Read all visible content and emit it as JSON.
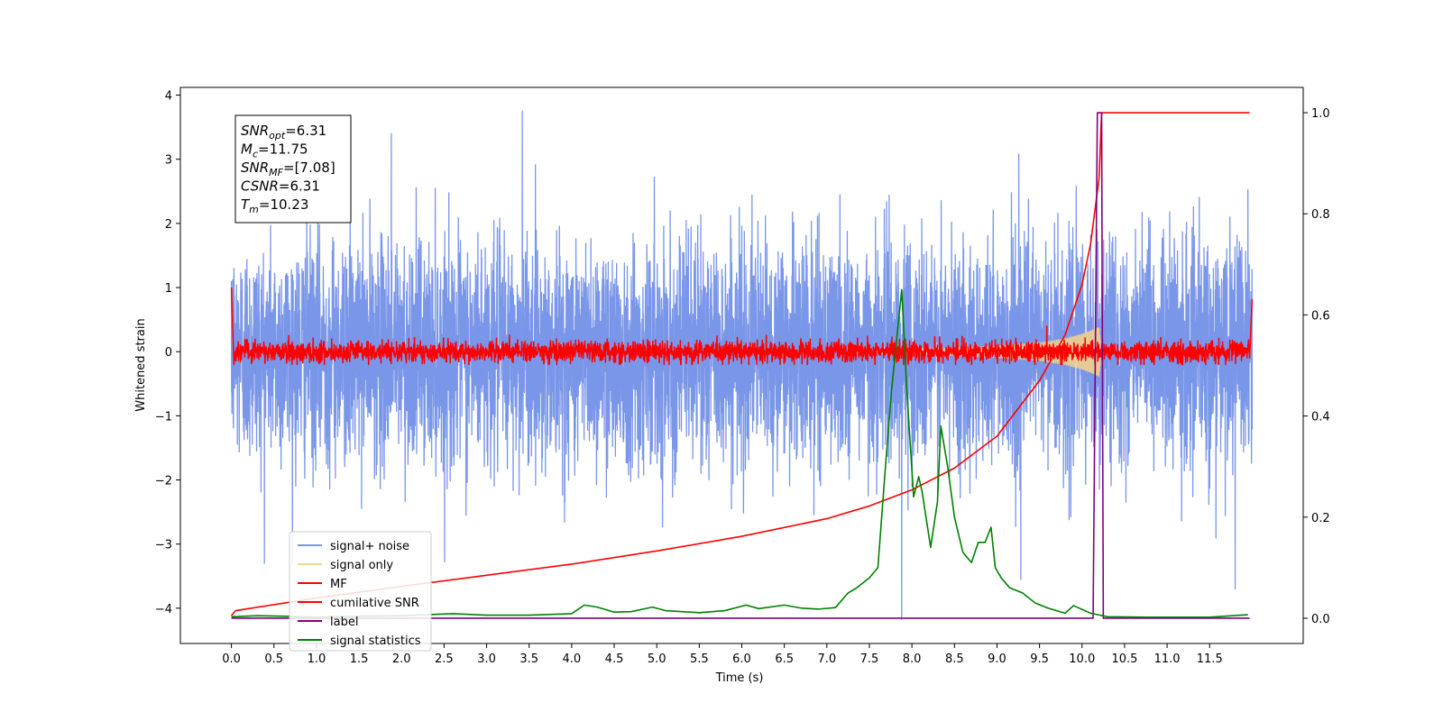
{
  "chart_data": {
    "type": "line",
    "xlabel": "Time (s)",
    "ylabel": "Whitened strain",
    "x_ticks": [
      "0.0",
      "0.5",
      "1.0",
      "1.5",
      "2.0",
      "2.5",
      "3.0",
      "3.5",
      "4.0",
      "4.5",
      "5.0",
      "5.5",
      "6.0",
      "6.5",
      "7.0",
      "7.5",
      "8.0",
      "8.5",
      "9.0",
      "9.5",
      "10.0",
      "10.5",
      "11.0",
      "11.5"
    ],
    "y_ticks": [
      "4",
      "3",
      "2",
      "1",
      "0",
      "−1",
      "−2",
      "−3",
      "−4"
    ],
    "y2_ticks": [
      "1.0",
      "0.8",
      "0.6",
      "0.4",
      "0.2",
      "0.0"
    ],
    "xlim": [
      -0.6,
      12.6
    ],
    "ylim": [
      -4.55,
      4.12
    ],
    "y2lim": [
      -0.05,
      1.05
    ],
    "grid": false,
    "legend_position": "lower-left",
    "legend": [
      {
        "label": "signal+ noise",
        "color": "#7a96e8"
      },
      {
        "label": "signal only",
        "color": "#f8d488"
      },
      {
        "label": "MF",
        "color": "#ff0000"
      },
      {
        "label": "cumilative SNR",
        "color": "#ff0000"
      },
      {
        "label": "label",
        "color": "#800080"
      },
      {
        "label": "signal statistics",
        "color": "#008000"
      }
    ],
    "annotation": [
      {
        "var": "SNR",
        "sub": "opt",
        "value": "=6.31"
      },
      {
        "var": "M",
        "sub": "c",
        "value": "=11.75"
      },
      {
        "var": "SNR",
        "sub": "MF",
        "value": "=[7.08]"
      },
      {
        "var": "CSNR",
        "sub": "",
        "value": "=6.31"
      },
      {
        "var": "T",
        "sub": "m",
        "value": "=10.23"
      }
    ],
    "series": [
      {
        "name": "signal+ noise",
        "axis": "left",
        "color": "#7a96e8",
        "note": "dense noise spanning roughly -2.5 to 2.5, extremes near ±3.7",
        "x_range": [
          0,
          12
        ],
        "extremes": [
          [
            3.42,
            3.75
          ],
          [
            7.88,
            -4.17
          ],
          [
            0.0,
            1.1
          ],
          [
            1.88,
            3.4
          ],
          [
            9.28,
            -3.55
          ],
          [
            11.8,
            -3.7
          ]
        ]
      },
      {
        "name": "signal only",
        "axis": "left",
        "color": "#f8d488",
        "note": "chirp growing toward merger around 10.2 s",
        "x": [
          7.5,
          8.5,
          9.0,
          9.5,
          9.8,
          10.0,
          10.1,
          10.2,
          10.23
        ],
        "envelope": [
          0.03,
          0.06,
          0.09,
          0.14,
          0.2,
          0.27,
          0.32,
          0.38,
          0.0
        ]
      },
      {
        "name": "MF",
        "axis": "left",
        "color": "#ff0000",
        "note": "matched filter output, noise about 0 within ±0.2 with peaks near 0.5",
        "x_range": [
          0,
          12
        ],
        "edges": [
          [
            0.0,
            1.0
          ],
          [
            0.03,
            -0.2
          ],
          [
            11.97,
            -0.1
          ],
          [
            12.0,
            0.82
          ]
        ]
      },
      {
        "name": "cumilative SNR",
        "axis": "right",
        "color": "#ff0000",
        "x": [
          0,
          0.05,
          1,
          2,
          3,
          4,
          5,
          6,
          7,
          7.5,
          8,
          8.5,
          9,
          9.5,
          9.8,
          10,
          10.1,
          10.2,
          10.23,
          11.97
        ],
        "values": [
          0.005,
          0.015,
          0.04,
          0.063,
          0.085,
          0.107,
          0.133,
          0.162,
          0.197,
          0.222,
          0.254,
          0.297,
          0.36,
          0.47,
          0.56,
          0.66,
          0.74,
          0.87,
          1.0,
          1.0
        ]
      },
      {
        "name": "label",
        "axis": "right",
        "color": "#800080",
        "x": [
          0,
          10.13,
          10.18,
          10.23,
          10.25,
          11.97
        ],
        "values": [
          0,
          0,
          1.0,
          1.0,
          0,
          0
        ]
      },
      {
        "name": "signal statistics",
        "axis": "right",
        "color": "#008000",
        "x": [
          0,
          0.3,
          0.6,
          1.0,
          1.5,
          2.0,
          2.3,
          2.6,
          3.0,
          3.5,
          4.0,
          4.15,
          4.3,
          4.5,
          4.7,
          4.95,
          5.1,
          5.3,
          5.5,
          5.8,
          6.05,
          6.2,
          6.5,
          6.7,
          6.9,
          7.1,
          7.25,
          7.35,
          7.5,
          7.6,
          7.68,
          7.76,
          7.88,
          7.94,
          8.02,
          8.08,
          8.12,
          8.22,
          8.3,
          8.34,
          8.42,
          8.5,
          8.6,
          8.7,
          8.78,
          8.86,
          8.93,
          8.98,
          9.05,
          9.15,
          9.3,
          9.45,
          9.6,
          9.8,
          9.9,
          10.1,
          10.3,
          10.8,
          11.5,
          11.95
        ],
        "values": [
          0.003,
          0.005,
          0.004,
          0.002,
          0.004,
          0.005,
          0.007,
          0.009,
          0.006,
          0.006,
          0.009,
          0.026,
          0.022,
          0.012,
          0.013,
          0.022,
          0.015,
          0.013,
          0.011,
          0.015,
          0.026,
          0.019,
          0.026,
          0.02,
          0.018,
          0.021,
          0.05,
          0.06,
          0.08,
          0.1,
          0.28,
          0.45,
          0.65,
          0.45,
          0.24,
          0.28,
          0.25,
          0.14,
          0.23,
          0.38,
          0.3,
          0.2,
          0.13,
          0.11,
          0.15,
          0.15,
          0.18,
          0.1,
          0.08,
          0.06,
          0.05,
          0.03,
          0.02,
          0.01,
          0.025,
          0.01,
          0.003,
          0.002,
          0.002,
          0.007
        ]
      }
    ]
  }
}
